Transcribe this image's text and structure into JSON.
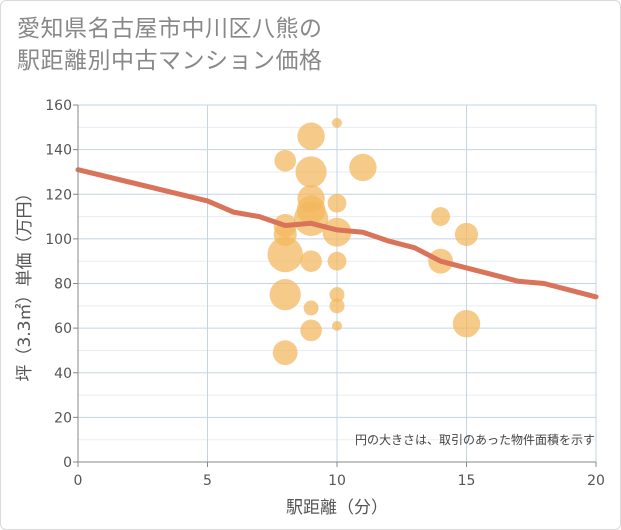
{
  "title_lines": [
    "愛知県名古屋市中川区八熊の",
    "駅距離別中古マンション価格"
  ],
  "chart_data": {
    "type": "scatter",
    "xlabel": "駅距離（分）",
    "ylabel": "坪（3.3㎡）単価（万円）",
    "xlim": [
      0,
      20
    ],
    "ylim": [
      0,
      160
    ],
    "x_ticks": [
      0,
      5,
      10,
      15,
      20
    ],
    "y_ticks": [
      0,
      20,
      40,
      60,
      80,
      100,
      120,
      140,
      160
    ],
    "grid": true,
    "annotation": "円の大きさは、取引のあった物件面積を示す",
    "colors": {
      "bubble": "#f2b75c",
      "trend": "#d9735a",
      "grid": "#c5d4e3",
      "axis": "#888888"
    },
    "bubbles": [
      {
        "x": 8,
        "y": 135,
        "size": 0.25
      },
      {
        "x": 8,
        "y": 106,
        "size": 0.3
      },
      {
        "x": 8,
        "y": 102,
        "size": 0.3
      },
      {
        "x": 8,
        "y": 93,
        "size": 0.8
      },
      {
        "x": 8,
        "y": 75,
        "size": 0.6
      },
      {
        "x": 8,
        "y": 49,
        "size": 0.35
      },
      {
        "x": 9,
        "y": 146,
        "size": 0.45
      },
      {
        "x": 9,
        "y": 130,
        "size": 0.6
      },
      {
        "x": 9,
        "y": 118,
        "size": 0.45
      },
      {
        "x": 9,
        "y": 113,
        "size": 0.5
      },
      {
        "x": 9,
        "y": 109,
        "size": 0.75
      },
      {
        "x": 9,
        "y": 90,
        "size": 0.25
      },
      {
        "x": 9,
        "y": 69,
        "size": 0.1
      },
      {
        "x": 9,
        "y": 59,
        "size": 0.25
      },
      {
        "x": 10,
        "y": 152,
        "size": 0.03
      },
      {
        "x": 10,
        "y": 116,
        "size": 0.18
      },
      {
        "x": 10,
        "y": 103,
        "size": 0.5
      },
      {
        "x": 10,
        "y": 90,
        "size": 0.18
      },
      {
        "x": 10,
        "y": 75,
        "size": 0.1
      },
      {
        "x": 10,
        "y": 70,
        "size": 0.1
      },
      {
        "x": 10,
        "y": 61,
        "size": 0.03
      },
      {
        "x": 11,
        "y": 132,
        "size": 0.45
      },
      {
        "x": 14,
        "y": 110,
        "size": 0.18
      },
      {
        "x": 14,
        "y": 90,
        "size": 0.35
      },
      {
        "x": 15,
        "y": 102,
        "size": 0.3
      },
      {
        "x": 15,
        "y": 62,
        "size": 0.45
      }
    ],
    "trend_line": {
      "x": [
        0,
        5,
        6,
        7,
        8,
        9,
        10,
        11,
        12,
        13,
        14,
        15,
        16,
        17,
        18,
        19,
        20
      ],
      "y": [
        131,
        117,
        112,
        110,
        106,
        107,
        104,
        103,
        99,
        96,
        90,
        87,
        84,
        81,
        80,
        77,
        74
      ]
    }
  }
}
